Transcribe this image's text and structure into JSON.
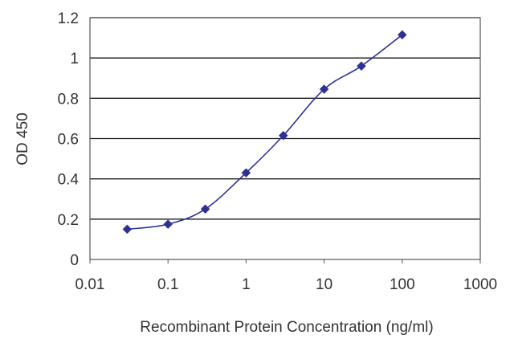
{
  "chart_data": {
    "type": "line",
    "title": "",
    "xlabel": "Recombinant Protein Concentration (ng/ml)",
    "ylabel": "OD 450",
    "x_scale": "log",
    "xlim": [
      0.01,
      1000
    ],
    "ylim": [
      0,
      1.2
    ],
    "x_ticks": [
      "0.01",
      "0.1",
      "1",
      "10",
      "100",
      "1000"
    ],
    "y_ticks": [
      "0",
      "0.2",
      "0.4",
      "0.6",
      "0.8",
      "1",
      "1.2"
    ],
    "grid": "horizontal",
    "legend": "none",
    "series": [
      {
        "color": "#2e3192",
        "marker": "diamond",
        "x": [
          0.03,
          0.1,
          0.3,
          1,
          3,
          10,
          30,
          100
        ],
        "y": [
          0.15,
          0.175,
          0.25,
          0.43,
          0.615,
          0.845,
          0.96,
          1.115
        ]
      }
    ]
  }
}
